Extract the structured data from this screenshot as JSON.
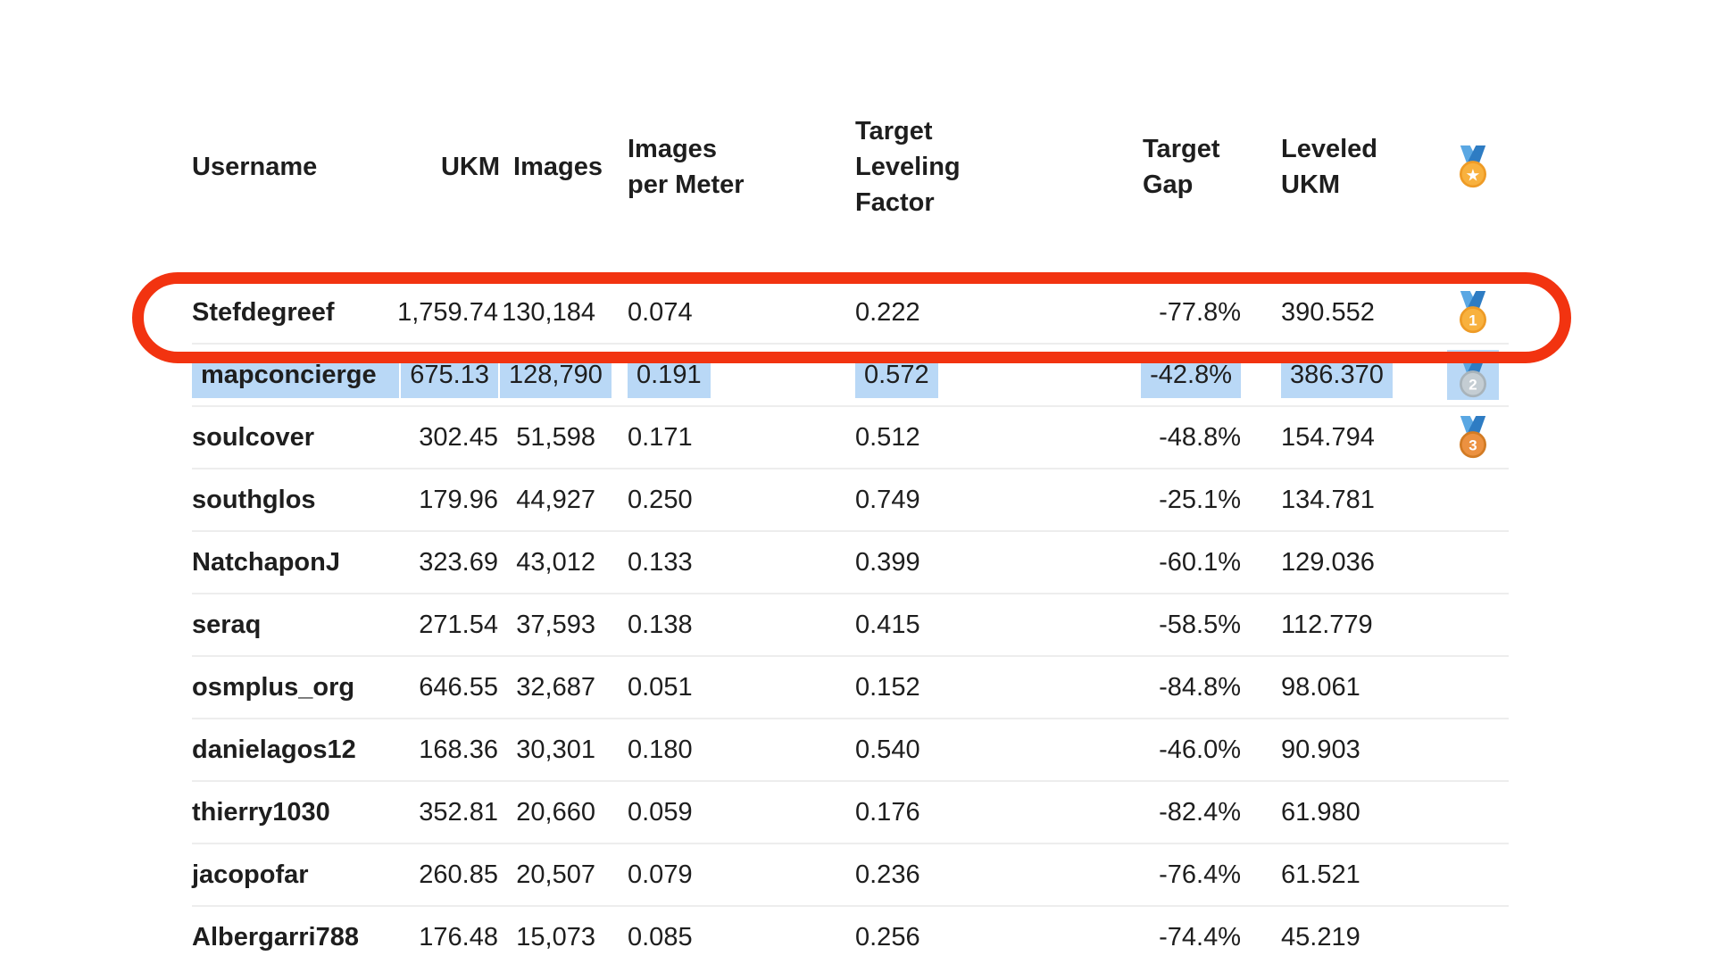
{
  "colors": {
    "background": "#ffffff",
    "text": "#1e1e1e",
    "selection_highlight": "#b9d8f6",
    "annotation_red": "#f23310",
    "row_divider": "#ededed",
    "header_divider": "#e2e2e2",
    "ribbon_left": "#5aa7e3",
    "ribbon_right": "#2e7cc3",
    "medal_gold": "#f8b13e",
    "medal_gold_rim": "#ee9b26",
    "medal_silver": "#c4cdd3",
    "medal_silver_rim": "#a8b3ba",
    "medal_bronze": "#ec9140",
    "medal_bronze_rim": "#d27b24"
  },
  "table": {
    "columns": [
      {
        "key": "username",
        "label": "Username"
      },
      {
        "key": "ukm",
        "label": "UKM"
      },
      {
        "key": "images",
        "label": "Images"
      },
      {
        "key": "images_per_meter",
        "label": "Images per Meter"
      },
      {
        "key": "target_leveling_factor",
        "label": "Target Leveling Factor"
      },
      {
        "key": "target_gap",
        "label": "Target Gap"
      },
      {
        "key": "leveled_ukm",
        "label": "Leveled UKM"
      },
      {
        "key": "medal",
        "label": "",
        "icon": "sports-medal"
      }
    ],
    "rows": [
      {
        "username": "Stefdegreef",
        "ukm": "1,759.74",
        "images": "130,184",
        "images_per_meter": "0.074",
        "target_leveling_factor": "0.222",
        "target_gap": "-77.8%",
        "leveled_ukm": "390.552",
        "medal": "1",
        "selected": false
      },
      {
        "username": "mapconcierge",
        "ukm": "675.13",
        "images": "128,790",
        "images_per_meter": "0.191",
        "target_leveling_factor": "0.572",
        "target_gap": "-42.8%",
        "leveled_ukm": "386.370",
        "medal": "2",
        "selected": true
      },
      {
        "username": "soulcover",
        "ukm": "302.45",
        "images": "51,598",
        "images_per_meter": "0.171",
        "target_leveling_factor": "0.512",
        "target_gap": "-48.8%",
        "leveled_ukm": "154.794",
        "medal": "3",
        "selected": false
      },
      {
        "username": "southglos",
        "ukm": "179.96",
        "images": "44,927",
        "images_per_meter": "0.250",
        "target_leveling_factor": "0.749",
        "target_gap": "-25.1%",
        "leveled_ukm": "134.781",
        "medal": null,
        "selected": false
      },
      {
        "username": "NatchaponJ",
        "ukm": "323.69",
        "images": "43,012",
        "images_per_meter": "0.133",
        "target_leveling_factor": "0.399",
        "target_gap": "-60.1%",
        "leveled_ukm": "129.036",
        "medal": null,
        "selected": false
      },
      {
        "username": "seraq",
        "ukm": "271.54",
        "images": "37,593",
        "images_per_meter": "0.138",
        "target_leveling_factor": "0.415",
        "target_gap": "-58.5%",
        "leveled_ukm": "112.779",
        "medal": null,
        "selected": false
      },
      {
        "username": "osmplus_org",
        "ukm": "646.55",
        "images": "32,687",
        "images_per_meter": "0.051",
        "target_leveling_factor": "0.152",
        "target_gap": "-84.8%",
        "leveled_ukm": "98.061",
        "medal": null,
        "selected": false
      },
      {
        "username": "danielagos12",
        "ukm": "168.36",
        "images": "30,301",
        "images_per_meter": "0.180",
        "target_leveling_factor": "0.540",
        "target_gap": "-46.0%",
        "leveled_ukm": "90.903",
        "medal": null,
        "selected": false
      },
      {
        "username": "thierry1030",
        "ukm": "352.81",
        "images": "20,660",
        "images_per_meter": "0.059",
        "target_leveling_factor": "0.176",
        "target_gap": "-82.4%",
        "leveled_ukm": "61.980",
        "medal": null,
        "selected": false
      },
      {
        "username": "jacopofar",
        "ukm": "260.85",
        "images": "20,507",
        "images_per_meter": "0.079",
        "target_leveling_factor": "0.236",
        "target_gap": "-76.4%",
        "leveled_ukm": "61.521",
        "medal": null,
        "selected": false
      },
      {
        "username": "Albergarri788",
        "ukm": "176.48",
        "images": "15,073",
        "images_per_meter": "0.085",
        "target_leveling_factor": "0.256",
        "target_gap": "-74.4%",
        "leveled_ukm": "45.219",
        "medal": null,
        "selected": false
      }
    ]
  },
  "annotation": {
    "shape": "red-rounded-oval",
    "marks_row": "mapconcierge",
    "selection_style": "per-cell text selection highlight"
  }
}
